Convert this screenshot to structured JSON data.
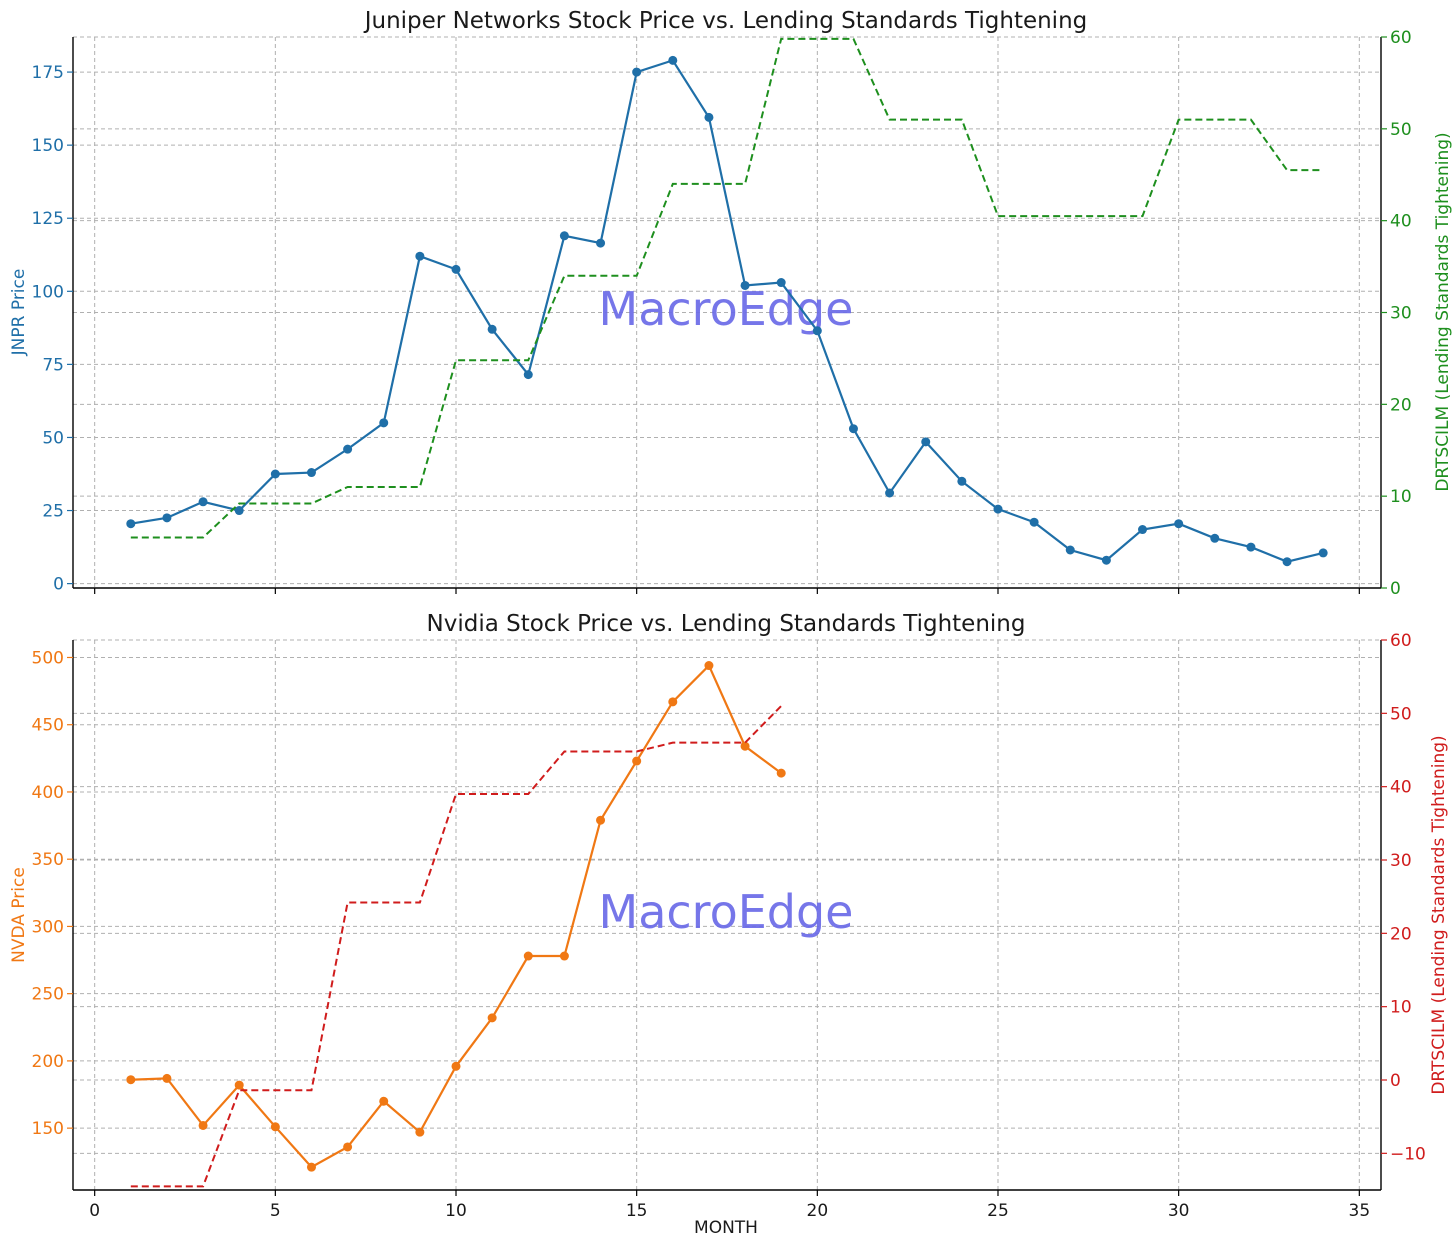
{
  "chart_data": [
    {
      "type": "line",
      "title": "Juniper Networks Stock Price vs. Lending Standards Tightening",
      "xlabel": "",
      "ylabel": "JNPR Price",
      "ylabel_right": "DRTSCILM (Lending Standards Tightening)",
      "xlim": [
        -0.6,
        35.6
      ],
      "ylim": [
        -1.5,
        187
      ],
      "ylim_right": [
        0,
        60
      ],
      "x_ticks": [
        0,
        5,
        10,
        15,
        20,
        25,
        30,
        35
      ],
      "x_tick_labels_visible": false,
      "y_ticks": [
        0,
        25,
        50,
        75,
        100,
        125,
        150,
        175
      ],
      "y_ticks_right": [
        0,
        10,
        20,
        30,
        40,
        50,
        60
      ],
      "grid": true,
      "watermark": "MacroEdge",
      "left_color": "#1f6fa8",
      "right_color": "#1e8f1e",
      "series": [
        {
          "axis": "left",
          "style": "solid-markers",
          "color": "#1f6fa8",
          "x": [
            1,
            2,
            3,
            4,
            5,
            6,
            7,
            8,
            9,
            10,
            11,
            12,
            13,
            14,
            15,
            16,
            17,
            18,
            19,
            20,
            21,
            22,
            23,
            24,
            25,
            26,
            27,
            28,
            29,
            30,
            31,
            32,
            33,
            34
          ],
          "values": [
            20.5,
            22.5,
            28,
            25,
            37.5,
            38,
            46,
            55,
            112,
            107.5,
            87,
            71.5,
            119,
            116.5,
            175,
            179,
            159.5,
            102,
            103,
            86.5,
            53,
            31,
            48.5,
            35,
            25.5,
            21,
            11.5,
            8,
            18.5,
            20.5,
            15.5,
            12.5,
            7.5,
            10.5
          ]
        },
        {
          "axis": "right",
          "style": "dashed-step",
          "color": "#1e8f1e",
          "x": [
            1,
            3,
            4,
            6,
            7,
            9,
            10,
            12,
            13,
            15,
            16,
            18,
            19,
            21,
            22,
            24,
            25,
            29,
            30,
            32,
            33,
            34
          ],
          "values": [
            5.5,
            5.5,
            9.2,
            9.2,
            11,
            11,
            24.8,
            24.8,
            34,
            34,
            44,
            44,
            59.8,
            59.8,
            51,
            51,
            40.5,
            40.5,
            51,
            51,
            45.5,
            45.5
          ]
        }
      ]
    },
    {
      "type": "line",
      "title": "Nvidia Stock Price vs. Lending Standards Tightening",
      "xlabel": "MONTH",
      "ylabel": "NVDA Price",
      "ylabel_right": "DRTSCILM (Lending Standards Tightening)",
      "xlim": [
        -0.6,
        35.6
      ],
      "ylim": [
        104,
        513
      ],
      "ylim_right": [
        -15,
        60
      ],
      "x_ticks": [
        0,
        5,
        10,
        15,
        20,
        25,
        30,
        35
      ],
      "x_tick_labels_visible": true,
      "y_ticks": [
        150,
        200,
        250,
        300,
        350,
        400,
        450,
        500
      ],
      "y_ticks_right": [
        -10,
        0,
        10,
        20,
        30,
        40,
        50,
        60
      ],
      "grid": true,
      "watermark": "MacroEdge",
      "left_color": "#f07814",
      "right_color": "#d01c1c",
      "series": [
        {
          "axis": "left",
          "style": "solid-markers",
          "color": "#f07814",
          "x": [
            1,
            2,
            3,
            4,
            5,
            6,
            7,
            8,
            9,
            10,
            11,
            12,
            13,
            14,
            15,
            16,
            17,
            18,
            19
          ],
          "values": [
            186,
            187,
            152,
            182,
            151,
            121,
            136,
            170,
            147,
            196,
            232,
            278,
            278,
            379,
            423,
            467,
            494,
            434,
            414
          ]
        },
        {
          "axis": "right",
          "style": "dashed-step",
          "color": "#d01c1c",
          "x": [
            1,
            3,
            4,
            6,
            7,
            9,
            10,
            12,
            13,
            15,
            16,
            18,
            19
          ],
          "values": [
            -14.5,
            -14.5,
            -1.4,
            -1.4,
            24.2,
            24.2,
            39,
            39,
            44.8,
            44.8,
            46,
            46,
            51
          ]
        }
      ]
    }
  ]
}
